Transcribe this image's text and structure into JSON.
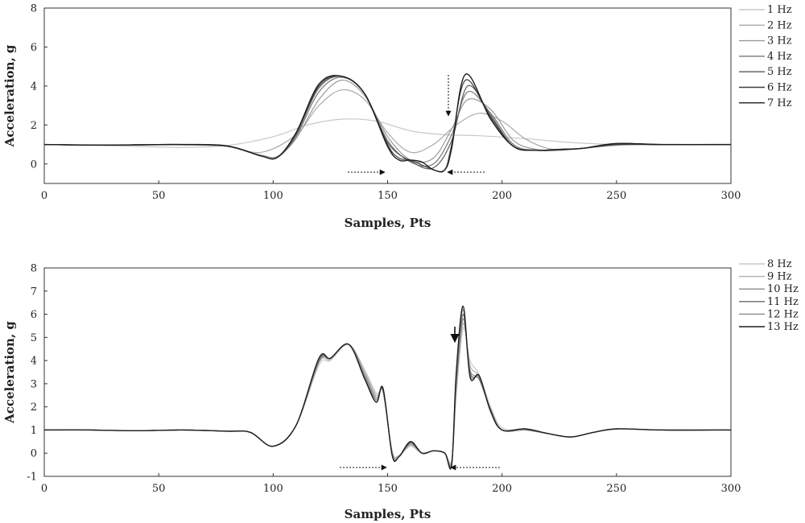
{
  "chart_data": [
    {
      "type": "line",
      "xlabel": "Samples, Pts",
      "ylabel": "Acceleration, g",
      "xlim": [
        0,
        300
      ],
      "ylim": [
        -1,
        8
      ],
      "xticks": [
        0,
        50,
        100,
        150,
        200,
        250,
        300
      ],
      "yticks": [
        0,
        2,
        4,
        6,
        8
      ],
      "grid": false,
      "legend_position": "right",
      "series": [
        {
          "name": "1 Hz",
          "color": "#c8c8c8",
          "x": [
            0,
            20,
            40,
            60,
            80,
            100,
            115,
            130,
            145,
            160,
            175,
            190,
            210,
            230,
            250,
            270,
            300
          ],
          "y": [
            1,
            0.95,
            0.9,
            0.85,
            0.95,
            1.4,
            2.0,
            2.3,
            2.2,
            1.7,
            1.5,
            1.45,
            1.3,
            1.1,
            1.0,
            0.98,
            1
          ]
        },
        {
          "name": "2 Hz",
          "color": "#aaaaaa",
          "x": [
            0,
            20,
            40,
            60,
            80,
            95,
            110,
            120,
            130,
            140,
            150,
            160,
            170,
            180,
            190,
            200,
            210,
            220,
            230,
            250,
            270,
            300
          ],
          "y": [
            1,
            0.98,
            0.97,
            0.98,
            0.9,
            0.6,
            1.5,
            3.0,
            3.8,
            3.3,
            1.6,
            0.6,
            1.0,
            2.0,
            2.6,
            2.2,
            1.3,
            0.8,
            0.75,
            0.95,
            1.0,
            1
          ]
        },
        {
          "name": "3 Hz",
          "color": "#999999",
          "x": [
            0,
            20,
            40,
            60,
            80,
            95,
            102,
            110,
            120,
            130,
            140,
            150,
            160,
            170,
            178,
            185,
            195,
            205,
            215,
            225,
            235,
            250,
            270,
            300
          ],
          "y": [
            1,
            0.97,
            0.98,
            1.0,
            0.9,
            0.45,
            0.4,
            1.3,
            3.3,
            4.3,
            3.5,
            1.4,
            0.2,
            0.3,
            1.8,
            3.3,
            2.8,
            1.2,
            0.75,
            0.7,
            0.8,
            1.0,
            1.0,
            1
          ]
        },
        {
          "name": "4 Hz",
          "color": "#777777",
          "x": [
            0,
            20,
            40,
            60,
            80,
            95,
            102,
            110,
            120,
            130,
            140,
            150,
            160,
            170,
            178,
            185,
            195,
            205,
            215,
            225,
            235,
            250,
            270,
            300
          ],
          "y": [
            1,
            0.97,
            0.98,
            1.0,
            0.9,
            0.4,
            0.35,
            1.4,
            3.7,
            4.45,
            3.6,
            1.2,
            0.1,
            0.0,
            1.5,
            3.7,
            2.6,
            1.0,
            0.7,
            0.7,
            0.8,
            1.0,
            1.0,
            1
          ]
        },
        {
          "name": "5 Hz",
          "color": "#5a5a5a",
          "x": [
            0,
            20,
            40,
            60,
            80,
            95,
            102,
            110,
            120,
            130,
            140,
            150,
            160,
            170,
            178,
            185,
            195,
            205,
            215,
            225,
            235,
            250,
            270,
            300
          ],
          "y": [
            1,
            0.97,
            0.98,
            1.0,
            0.92,
            0.4,
            0.35,
            1.5,
            3.9,
            4.5,
            3.6,
            1.1,
            0.15,
            -0.2,
            1.2,
            4.0,
            2.5,
            0.9,
            0.7,
            0.75,
            0.8,
            1.0,
            1.0,
            1
          ]
        },
        {
          "name": "6 Hz",
          "color": "#3e3e3e",
          "x": [
            0,
            20,
            40,
            60,
            80,
            95,
            102,
            110,
            120,
            130,
            140,
            150,
            155,
            160,
            170,
            175,
            178,
            184,
            195,
            205,
            215,
            225,
            235,
            250,
            270,
            300
          ],
          "y": [
            1,
            0.97,
            0.98,
            1.0,
            0.93,
            0.4,
            0.35,
            1.6,
            4.0,
            4.5,
            3.6,
            1.0,
            0.3,
            0.2,
            -0.3,
            -0.3,
            1.0,
            4.3,
            2.4,
            0.9,
            0.7,
            0.75,
            0.8,
            1.0,
            1.0,
            1
          ]
        },
        {
          "name": "7 Hz",
          "color": "#1e1e1e",
          "x": [
            0,
            20,
            40,
            60,
            80,
            95,
            102,
            110,
            120,
            130,
            140,
            150,
            155,
            160,
            165,
            170,
            175,
            178,
            184,
            195,
            205,
            215,
            225,
            235,
            250,
            270,
            300
          ],
          "y": [
            1,
            0.97,
            0.98,
            1.0,
            0.93,
            0.4,
            0.35,
            1.6,
            4.1,
            4.5,
            3.6,
            0.9,
            0.2,
            0.2,
            0.1,
            -0.3,
            -0.3,
            0.8,
            4.6,
            2.3,
            0.9,
            0.7,
            0.75,
            0.8,
            1.05,
            1.0,
            1
          ]
        }
      ]
    },
    {
      "type": "line",
      "xlabel": "Samples, Pts",
      "ylabel": "Acceleration, g",
      "xlim": [
        0,
        300
      ],
      "ylim": [
        -1,
        8
      ],
      "xticks": [
        0,
        50,
        100,
        150,
        200,
        250,
        300
      ],
      "yticks": [
        -1,
        0,
        1,
        2,
        3,
        4,
        5,
        6,
        7,
        8
      ],
      "grid": false,
      "legend_position": "right",
      "series": [
        {
          "name": "8 Hz",
          "color": "#c8c8c8",
          "x": [
            0,
            20,
            40,
            60,
            80,
            90,
            100,
            110,
            120,
            125,
            133,
            140,
            145,
            148,
            152,
            155,
            160,
            165,
            170,
            175,
            178,
            180,
            183,
            186,
            190,
            195,
            200,
            210,
            220,
            230,
            240,
            250,
            270,
            300
          ],
          "y": [
            1,
            1.0,
            0.97,
            1.0,
            0.95,
            0.9,
            0.3,
            1.2,
            3.8,
            4.0,
            4.7,
            3.6,
            2.6,
            2.6,
            0.1,
            -0.1,
            0.3,
            0.0,
            0.1,
            0.0,
            -0.3,
            2.5,
            5.4,
            4.0,
            3.4,
            2.0,
            1.1,
            1.0,
            0.85,
            0.7,
            0.9,
            1.05,
            1.0,
            1
          ]
        },
        {
          "name": "9 Hz",
          "color": "#b0b0b0",
          "x": [
            0,
            20,
            40,
            60,
            80,
            90,
            100,
            110,
            120,
            125,
            133,
            140,
            145,
            148,
            152,
            155,
            160,
            165,
            170,
            175,
            178,
            180,
            183,
            186,
            190,
            195,
            200,
            210,
            220,
            230,
            240,
            250,
            270,
            300
          ],
          "y": [
            1,
            1.0,
            0.97,
            1.0,
            0.95,
            0.9,
            0.3,
            1.2,
            3.9,
            4.05,
            4.7,
            3.5,
            2.5,
            2.65,
            0.05,
            -0.1,
            0.35,
            0.0,
            0.1,
            0.0,
            -0.35,
            2.7,
            5.6,
            3.8,
            3.3,
            1.9,
            1.0,
            1.0,
            0.85,
            0.7,
            0.9,
            1.05,
            1.0,
            1
          ]
        },
        {
          "name": "10 Hz",
          "color": "#8e8e8e",
          "x": [
            0,
            20,
            40,
            60,
            80,
            90,
            100,
            110,
            120,
            125,
            133,
            140,
            145,
            148,
            152,
            155,
            160,
            165,
            170,
            175,
            178,
            180,
            183,
            186,
            190,
            195,
            200,
            210,
            220,
            230,
            240,
            250,
            270,
            300
          ],
          "y": [
            1,
            1.0,
            0.97,
            1.0,
            0.95,
            0.9,
            0.3,
            1.2,
            3.95,
            4.1,
            4.7,
            3.4,
            2.4,
            2.7,
            0.0,
            -0.15,
            0.4,
            0.0,
            0.1,
            0.0,
            -0.4,
            2.9,
            5.8,
            3.6,
            3.2,
            1.9,
            1.0,
            1.0,
            0.85,
            0.7,
            0.9,
            1.05,
            1.0,
            1
          ]
        },
        {
          "name": "11 Hz",
          "color": "#6a6a6a",
          "x": [
            0,
            20,
            40,
            60,
            80,
            90,
            100,
            110,
            120,
            125,
            133,
            140,
            145,
            148,
            152,
            155,
            160,
            165,
            170,
            175,
            178,
            180,
            183,
            186,
            190,
            195,
            200,
            210,
            220,
            230,
            240,
            250,
            270,
            300
          ],
          "y": [
            1,
            1.0,
            0.97,
            1.0,
            0.95,
            0.9,
            0.3,
            1.2,
            4.0,
            4.1,
            4.7,
            3.3,
            2.3,
            2.75,
            -0.05,
            -0.15,
            0.45,
            0.0,
            0.1,
            0.0,
            -0.45,
            3.1,
            6.0,
            3.5,
            3.2,
            1.85,
            1.0,
            1.05,
            0.85,
            0.7,
            0.9,
            1.05,
            1.0,
            1
          ]
        },
        {
          "name": "12 Hz",
          "color": "#8a8a8a",
          "x": [
            0,
            20,
            40,
            60,
            80,
            90,
            100,
            110,
            120,
            125,
            133,
            140,
            145,
            148,
            152,
            155,
            160,
            165,
            170,
            175,
            178,
            180,
            183,
            186,
            190,
            195,
            200,
            210,
            220,
            230,
            240,
            250,
            270,
            300
          ],
          "y": [
            1,
            1.0,
            0.97,
            1.0,
            0.95,
            0.9,
            0.3,
            1.2,
            4.05,
            4.1,
            4.7,
            3.3,
            2.3,
            2.8,
            -0.05,
            -0.15,
            0.5,
            0.0,
            0.1,
            0.0,
            -0.5,
            3.3,
            6.2,
            3.4,
            3.3,
            1.8,
            1.0,
            1.05,
            0.85,
            0.7,
            0.9,
            1.05,
            1.0,
            1
          ]
        },
        {
          "name": "13 Hz",
          "color": "#1e1e1e",
          "x": [
            0,
            20,
            40,
            60,
            80,
            90,
            100,
            110,
            120,
            125,
            133,
            140,
            145,
            148,
            152,
            155,
            160,
            165,
            170,
            175,
            178,
            180,
            183,
            186,
            190,
            195,
            200,
            210,
            220,
            230,
            240,
            250,
            270,
            300
          ],
          "y": [
            1,
            1.0,
            0.97,
            1.0,
            0.95,
            0.9,
            0.3,
            1.2,
            4.1,
            4.1,
            4.7,
            3.2,
            2.2,
            2.8,
            -0.1,
            -0.15,
            0.5,
            0.0,
            0.1,
            0.0,
            -0.5,
            3.5,
            6.35,
            3.3,
            3.35,
            1.8,
            1.0,
            1.05,
            0.85,
            0.7,
            0.9,
            1.05,
            1.0,
            1
          ]
        }
      ]
    }
  ]
}
